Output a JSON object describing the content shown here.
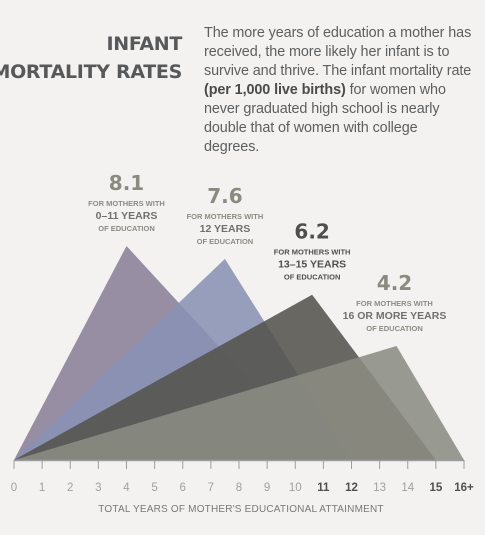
{
  "header": {
    "title_line1": "INFANT",
    "title_line2": "MORTALITY RATES",
    "intro_before": "The more years of education a mother has received, the more likely her infant is to survive and thrive. The infant mortality rate ",
    "intro_bold": "(per 1,000 live births)",
    "intro_after": " for women who never graduated high school is nearly double that of women with college degrees."
  },
  "chart_data": {
    "type": "area",
    "xlabel": "TOTAL YEARS OF MOTHER'S EDUCATIONAL ATTAINMENT",
    "x_ticks": [
      "0",
      "1",
      "2",
      "3",
      "4",
      "5",
      "6",
      "7",
      "8",
      "9",
      "10",
      "11",
      "12",
      "13",
      "14",
      "15",
      "16+"
    ],
    "bold_ticks": [
      "11",
      "12",
      "15",
      "16+"
    ],
    "series": [
      {
        "value": 8.1,
        "line1": "FOR MOTHERS WITH",
        "line2": "0–11 YEARS",
        "line3": "OF EDUCATION",
        "color": "#8a8097",
        "start_x": 0,
        "peak_x": 4,
        "end_x": 11
      },
      {
        "value": 7.6,
        "line1": "FOR MOTHERS WITH",
        "line2": "12 YEARS",
        "line3": "OF EDUCATION",
        "color": "#8a92b4",
        "start_x": 0,
        "peak_x": 7.5,
        "end_x": 12
      },
      {
        "value": 6.2,
        "line1": "FOR MOTHERS WITH",
        "line2": "13–15 YEARS",
        "line3": "OF EDUCATION",
        "color": "#54534c",
        "start_x": 0,
        "peak_x": 10.6,
        "end_x": 15
      },
      {
        "value": 4.2,
        "line1": "FOR MOTHERS WITH",
        "line2": "16 OR MORE YEARS",
        "line3": "OF EDUCATION",
        "color": "#8b8c82",
        "start_x": 0,
        "peak_x": 13.6,
        "end_x": 16
      }
    ],
    "label_colors": {
      "value": "#898b80",
      "value_dark": "#4e4f4b",
      "sub": "#8a8c84",
      "sub_strong": "#6f716b"
    },
    "axis_color": "#9c9d9e",
    "tick_color": "#9fa0a2",
    "tick_bold_color": "#4e4f51"
  }
}
